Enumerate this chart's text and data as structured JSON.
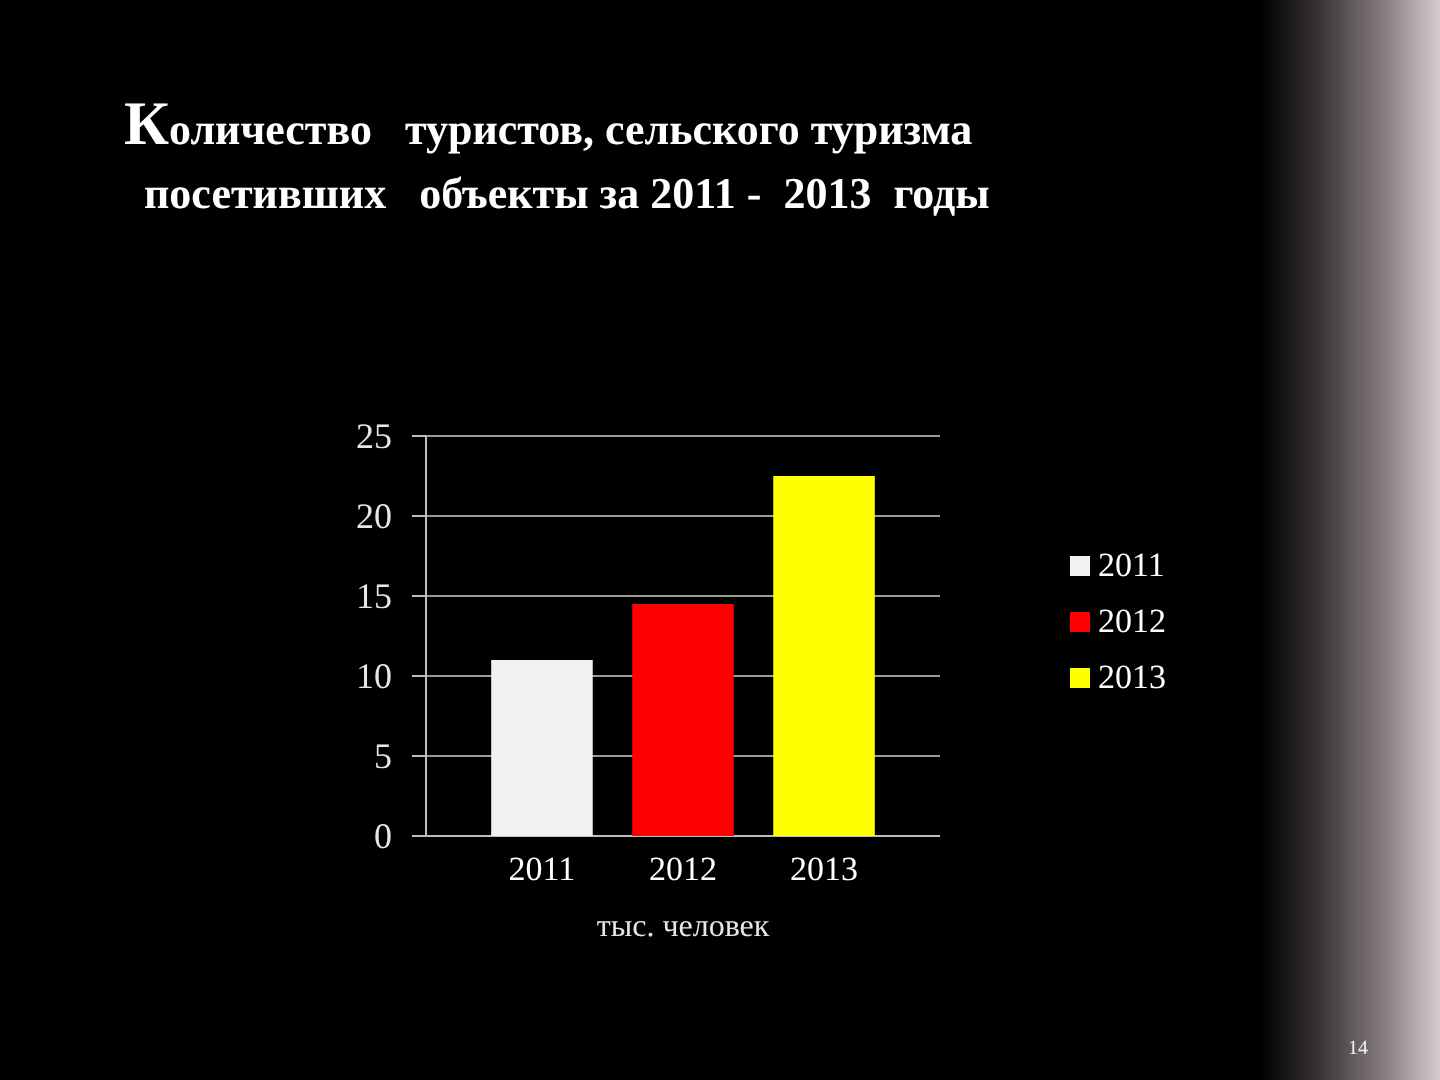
{
  "chart_data": {
    "type": "bar",
    "title": "Количество   туристов, сельского туризма\nпосетивших   объекты за 2011 -  2013  годы",
    "xlabel": "тыс. человек",
    "categories": [
      null
    ],
    "series": [
      {
        "name": "2011",
        "color": "#f2f2f2",
        "values": [
          11
        ]
      },
      {
        "name": "2012",
        "color": "#ff0000",
        "values": [
          14.5
        ]
      },
      {
        "name": "2013",
        "color": "#ffff00",
        "values": [
          22.5
        ]
      }
    ],
    "ylim": [
      0,
      25
    ],
    "yticks": [
      0,
      5,
      10,
      15,
      20,
      25
    ],
    "grid": "y",
    "legend": "right",
    "annotations": [
      "14"
    ]
  }
}
